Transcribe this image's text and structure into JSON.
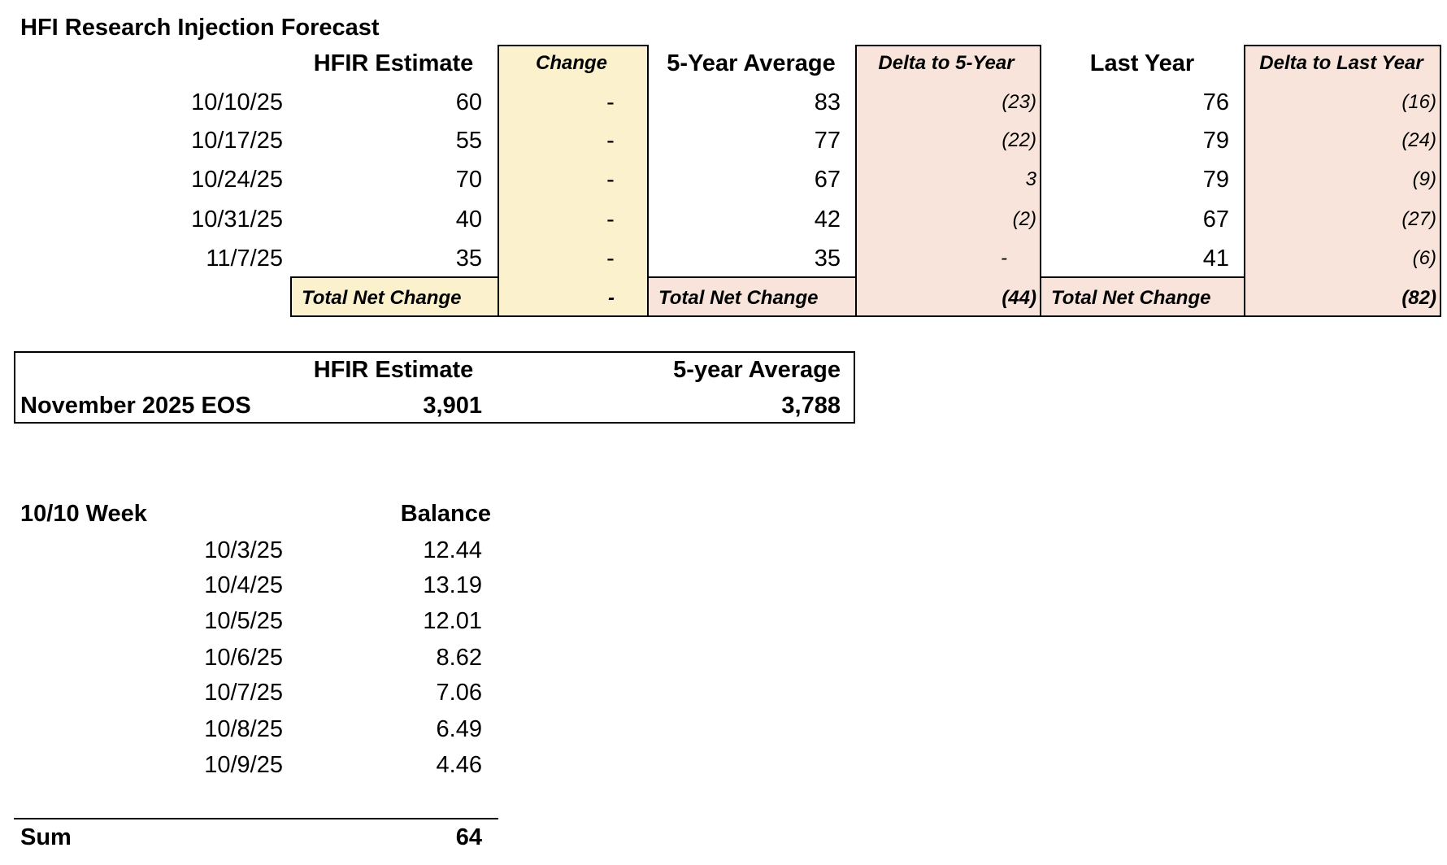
{
  "title": "HFI Research Injection Forecast",
  "forecast": {
    "headers": [
      "HFIR Estimate",
      "Change",
      "5-Year Average",
      "Delta to 5-Year",
      "Last Year",
      "Delta to Last Year"
    ],
    "rows": [
      [
        "10/10/25",
        "60",
        "-",
        "83",
        "(23)",
        "76",
        "(16)"
      ],
      [
        "10/17/25",
        "55",
        "-",
        "77",
        "(22)",
        "79",
        "(24)"
      ],
      [
        "10/24/25",
        "70",
        "-",
        "67",
        "3",
        "79",
        "(9)"
      ],
      [
        "10/31/25",
        "40",
        "-",
        "42",
        "(2)",
        "67",
        "(27)"
      ],
      [
        "11/7/25",
        "35",
        "-",
        "35",
        "-",
        "41",
        "(6)"
      ]
    ],
    "total": [
      "Total Net Change",
      "-",
      "Total Net Change",
      "(44)",
      "Total Net Change",
      "(82)"
    ]
  },
  "eos": {
    "headers": [
      "HFIR Estimate",
      "5-year Average"
    ],
    "label": "November 2025 EOS",
    "values": [
      "3,901",
      "3,788"
    ]
  },
  "balance": {
    "title": "10/10 Week",
    "header": "Balance",
    "rows": [
      [
        "10/3/25",
        "12.44"
      ],
      [
        "10/4/25",
        "13.19"
      ],
      [
        "10/5/25",
        "12.01"
      ],
      [
        "10/6/25",
        "8.62"
      ],
      [
        "10/7/25",
        "7.06"
      ],
      [
        "10/8/25",
        "6.49"
      ],
      [
        "10/9/25",
        "4.46"
      ]
    ],
    "sum_label": "Sum",
    "sum": "64"
  }
}
